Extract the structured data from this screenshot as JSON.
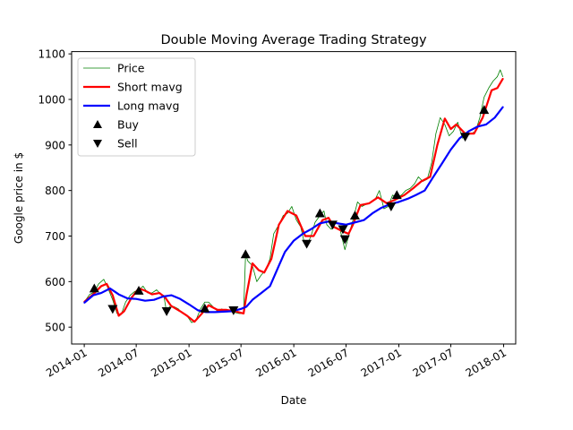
{
  "chart_data": {
    "type": "line",
    "title": "Double Moving Average Trading Strategy",
    "xlabel": "Date",
    "ylabel": "Google price in $",
    "xlim": [
      "2013-11-18",
      "2018-02-12"
    ],
    "ylim": [
      463,
      1105
    ],
    "x_ticks": [
      "2014-01",
      "2014-07",
      "2015-01",
      "2015-07",
      "2016-01",
      "2016-07",
      "2017-01",
      "2017-07",
      "2018-01"
    ],
    "y_ticks": [
      500,
      600,
      700,
      800,
      900,
      1000,
      1100
    ],
    "grid": false,
    "legend_position": "upper-left",
    "series": [
      {
        "name": "Price",
        "color": "#008000",
        "points": [
          [
            "2014-01-02",
            556
          ],
          [
            "2014-01-20",
            572
          ],
          [
            "2014-02-05",
            577
          ],
          [
            "2014-02-20",
            595
          ],
          [
            "2014-03-10",
            605
          ],
          [
            "2014-03-25",
            585
          ],
          [
            "2014-04-10",
            560
          ],
          [
            "2014-04-25",
            530
          ],
          [
            "2014-05-10",
            528
          ],
          [
            "2014-05-25",
            555
          ],
          [
            "2014-06-10",
            570
          ],
          [
            "2014-06-25",
            578
          ],
          [
            "2014-07-10",
            582
          ],
          [
            "2014-07-25",
            590
          ],
          [
            "2014-08-10",
            575
          ],
          [
            "2014-08-25",
            575
          ],
          [
            "2014-09-10",
            582
          ],
          [
            "2014-09-25",
            572
          ],
          [
            "2014-10-05",
            570
          ],
          [
            "2014-10-15",
            532
          ],
          [
            "2014-10-25",
            545
          ],
          [
            "2014-11-10",
            545
          ],
          [
            "2014-11-25",
            540
          ],
          [
            "2014-12-10",
            530
          ],
          [
            "2014-12-25",
            525
          ],
          [
            "2015-01-10",
            510
          ],
          [
            "2015-01-25",
            515
          ],
          [
            "2015-02-10",
            540
          ],
          [
            "2015-02-25",
            555
          ],
          [
            "2015-03-10",
            555
          ],
          [
            "2015-03-25",
            545
          ],
          [
            "2015-04-10",
            535
          ],
          [
            "2015-04-25",
            540
          ],
          [
            "2015-05-10",
            535
          ],
          [
            "2015-05-25",
            535
          ],
          [
            "2015-06-10",
            532
          ],
          [
            "2015-06-25",
            530
          ],
          [
            "2015-07-10",
            530
          ],
          [
            "2015-07-17",
            660
          ],
          [
            "2015-07-25",
            645
          ],
          [
            "2015-08-10",
            635
          ],
          [
            "2015-08-25",
            600
          ],
          [
            "2015-09-10",
            615
          ],
          [
            "2015-09-25",
            625
          ],
          [
            "2015-10-10",
            650
          ],
          [
            "2015-10-23",
            705
          ],
          [
            "2015-11-10",
            725
          ],
          [
            "2015-11-25",
            745
          ],
          [
            "2015-12-10",
            750
          ],
          [
            "2015-12-25",
            765
          ],
          [
            "2016-01-10",
            735
          ],
          [
            "2016-01-25",
            720
          ],
          [
            "2016-02-05",
            690
          ],
          [
            "2016-02-15",
            680
          ],
          [
            "2016-03-01",
            700
          ],
          [
            "2016-03-15",
            730
          ],
          [
            "2016-04-01",
            745
          ],
          [
            "2016-04-15",
            755
          ],
          [
            "2016-04-25",
            725
          ],
          [
            "2016-05-10",
            715
          ],
          [
            "2016-05-25",
            720
          ],
          [
            "2016-06-10",
            715
          ],
          [
            "2016-06-27",
            670
          ],
          [
            "2016-07-10",
            700
          ],
          [
            "2016-07-25",
            735
          ],
          [
            "2016-08-10",
            775
          ],
          [
            "2016-08-25",
            765
          ],
          [
            "2016-09-10",
            770
          ],
          [
            "2016-09-25",
            775
          ],
          [
            "2016-10-10",
            780
          ],
          [
            "2016-10-25",
            800
          ],
          [
            "2016-11-10",
            760
          ],
          [
            "2016-11-25",
            765
          ],
          [
            "2016-12-10",
            790
          ],
          [
            "2016-12-25",
            785
          ],
          [
            "2017-01-10",
            790
          ],
          [
            "2017-01-25",
            800
          ],
          [
            "2017-02-10",
            805
          ],
          [
            "2017-02-25",
            815
          ],
          [
            "2017-03-10",
            830
          ],
          [
            "2017-03-25",
            820
          ],
          [
            "2017-04-10",
            825
          ],
          [
            "2017-04-25",
            860
          ],
          [
            "2017-05-10",
            925
          ],
          [
            "2017-05-25",
            960
          ],
          [
            "2017-06-10",
            945
          ],
          [
            "2017-06-25",
            920
          ],
          [
            "2017-07-10",
            930
          ],
          [
            "2017-07-25",
            950
          ],
          [
            "2017-08-10",
            915
          ],
          [
            "2017-08-25",
            920
          ],
          [
            "2017-09-10",
            925
          ],
          [
            "2017-09-25",
            930
          ],
          [
            "2017-10-10",
            960
          ],
          [
            "2017-10-25",
            1005
          ],
          [
            "2017-11-10",
            1025
          ],
          [
            "2017-11-25",
            1040
          ],
          [
            "2017-12-10",
            1050
          ],
          [
            "2017-12-20",
            1065
          ],
          [
            "2017-12-29",
            1050
          ]
        ]
      },
      {
        "name": "Short mavg",
        "color": "#ff0000",
        "points": [
          [
            "2014-01-02",
            556
          ],
          [
            "2014-02-01",
            572
          ],
          [
            "2014-03-01",
            590
          ],
          [
            "2014-03-20",
            595
          ],
          [
            "2014-04-10",
            570
          ],
          [
            "2014-05-01",
            525
          ],
          [
            "2014-05-20",
            535
          ],
          [
            "2014-06-15",
            565
          ],
          [
            "2014-07-10",
            585
          ],
          [
            "2014-08-01",
            580
          ],
          [
            "2014-08-25",
            572
          ],
          [
            "2014-09-20",
            575
          ],
          [
            "2014-10-10",
            565
          ],
          [
            "2014-10-30",
            547
          ],
          [
            "2014-12-01",
            535
          ],
          [
            "2014-12-25",
            525
          ],
          [
            "2015-01-20",
            512
          ],
          [
            "2015-02-15",
            530
          ],
          [
            "2015-03-10",
            548
          ],
          [
            "2015-04-10",
            538
          ],
          [
            "2015-05-10",
            538
          ],
          [
            "2015-06-10",
            535
          ],
          [
            "2015-07-10",
            530
          ],
          [
            "2015-07-20",
            570
          ],
          [
            "2015-08-10",
            640
          ],
          [
            "2015-09-01",
            625
          ],
          [
            "2015-09-20",
            620
          ],
          [
            "2015-10-15",
            650
          ],
          [
            "2015-11-10",
            725
          ],
          [
            "2015-12-10",
            755
          ],
          [
            "2016-01-10",
            745
          ],
          [
            "2016-02-10",
            700
          ],
          [
            "2016-03-10",
            700
          ],
          [
            "2016-04-10",
            735
          ],
          [
            "2016-05-01",
            740
          ],
          [
            "2016-05-20",
            720
          ],
          [
            "2016-06-20",
            710
          ],
          [
            "2016-07-10",
            705
          ],
          [
            "2016-07-25",
            725
          ],
          [
            "2016-08-20",
            768
          ],
          [
            "2016-09-20",
            772
          ],
          [
            "2016-10-20",
            785
          ],
          [
            "2016-11-20",
            772
          ],
          [
            "2016-12-20",
            780
          ],
          [
            "2017-01-20",
            790
          ],
          [
            "2017-02-20",
            805
          ],
          [
            "2017-03-20",
            820
          ],
          [
            "2017-04-20",
            830
          ],
          [
            "2017-05-15",
            900
          ],
          [
            "2017-06-10",
            958
          ],
          [
            "2017-07-01",
            935
          ],
          [
            "2017-07-20",
            945
          ],
          [
            "2017-08-20",
            925
          ],
          [
            "2017-09-20",
            925
          ],
          [
            "2017-10-20",
            960
          ],
          [
            "2017-11-20",
            1020
          ],
          [
            "2017-12-10",
            1025
          ],
          [
            "2017-12-29",
            1045
          ]
        ]
      },
      {
        "name": "Long mavg",
        "color": "#0000ff",
        "points": [
          [
            "2014-01-02",
            554
          ],
          [
            "2014-02-01",
            570
          ],
          [
            "2014-03-01",
            575
          ],
          [
            "2014-04-01",
            585
          ],
          [
            "2014-05-01",
            572
          ],
          [
            "2014-06-01",
            563
          ],
          [
            "2014-07-01",
            562
          ],
          [
            "2014-08-01",
            558
          ],
          [
            "2014-09-01",
            560
          ],
          [
            "2014-10-01",
            567
          ],
          [
            "2014-11-01",
            570
          ],
          [
            "2014-12-01",
            562
          ],
          [
            "2015-01-01",
            550
          ],
          [
            "2015-02-01",
            537
          ],
          [
            "2015-03-01",
            533
          ],
          [
            "2015-04-01",
            533
          ],
          [
            "2015-05-01",
            534
          ],
          [
            "2015-06-01",
            535
          ],
          [
            "2015-07-01",
            540
          ],
          [
            "2015-07-20",
            545
          ],
          [
            "2015-08-10",
            560
          ],
          [
            "2015-09-10",
            575
          ],
          [
            "2015-10-10",
            590
          ],
          [
            "2015-11-10",
            635
          ],
          [
            "2015-12-01",
            665
          ],
          [
            "2016-01-01",
            690
          ],
          [
            "2016-02-01",
            705
          ],
          [
            "2016-03-01",
            715
          ],
          [
            "2016-04-01",
            728
          ],
          [
            "2016-05-01",
            732
          ],
          [
            "2016-06-01",
            728
          ],
          [
            "2016-07-01",
            725
          ],
          [
            "2016-08-01",
            730
          ],
          [
            "2016-09-01",
            735
          ],
          [
            "2016-10-01",
            750
          ],
          [
            "2016-11-01",
            762
          ],
          [
            "2016-12-01",
            770
          ],
          [
            "2017-01-01",
            775
          ],
          [
            "2017-02-01",
            782
          ],
          [
            "2017-03-01",
            790
          ],
          [
            "2017-04-01",
            800
          ],
          [
            "2017-05-01",
            830
          ],
          [
            "2017-06-01",
            860
          ],
          [
            "2017-07-01",
            890
          ],
          [
            "2017-08-01",
            915
          ],
          [
            "2017-09-01",
            930
          ],
          [
            "2017-10-01",
            940
          ],
          [
            "2017-11-01",
            945
          ],
          [
            "2017-12-01",
            960
          ],
          [
            "2017-12-29",
            983
          ]
        ]
      },
      {
        "name": "Buy",
        "color": "#000000",
        "marker": "triangle-up",
        "points": [
          [
            "2014-02-05",
            585
          ],
          [
            "2014-07-10",
            580
          ],
          [
            "2015-02-25",
            541
          ],
          [
            "2015-07-17",
            660
          ],
          [
            "2016-04-01",
            750
          ],
          [
            "2016-08-01",
            745
          ],
          [
            "2016-12-25",
            790
          ],
          [
            "2017-10-25",
            977
          ]
        ]
      },
      {
        "name": "Sell",
        "color": "#000000",
        "marker": "triangle-down",
        "points": [
          [
            "2014-04-10",
            540
          ],
          [
            "2014-10-15",
            535
          ],
          [
            "2015-06-05",
            537
          ],
          [
            "2016-02-15",
            683
          ],
          [
            "2016-05-15",
            725
          ],
          [
            "2016-06-20",
            715
          ],
          [
            "2016-06-27",
            693
          ],
          [
            "2016-12-05",
            765
          ],
          [
            "2017-08-20",
            918
          ]
        ]
      }
    ]
  }
}
